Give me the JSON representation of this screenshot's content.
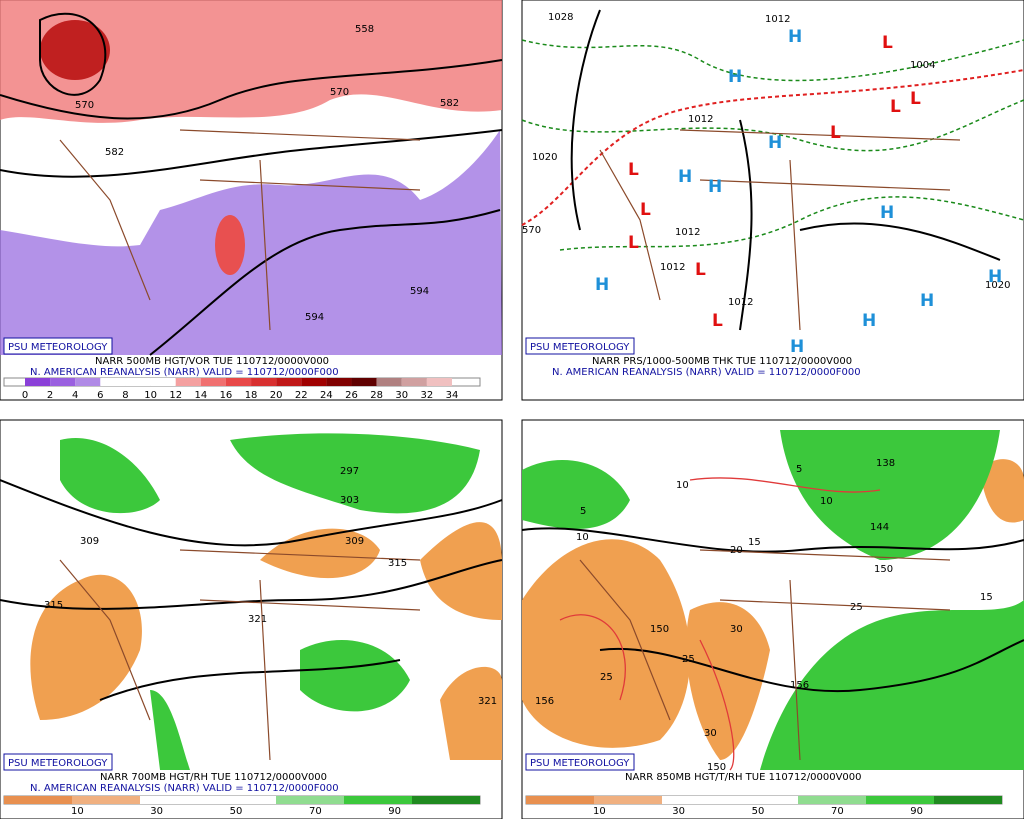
{
  "panels": [
    {
      "badge": "PSU METEOROLOGY",
      "caption_1": "NARR 500MB HGT/VOR TUE 110712/0000V000",
      "caption_2": "N. AMERICAN REANALYSIS (NARR) VALID = 110712/0000F000",
      "colorbar_labels": [
        0,
        2,
        4,
        6,
        8,
        10,
        12,
        14,
        16,
        18,
        20,
        22,
        24,
        26,
        28,
        30,
        32,
        34
      ],
      "contour_labels": [
        "558",
        "570",
        "570",
        "582",
        "582",
        "594",
        "594"
      ]
    },
    {
      "badge": "PSU METEOROLOGY",
      "caption_1": "NARR PRS/1000-500MB THK TUE 110712/0000V000",
      "caption_2": "N. AMERICAN REANALYSIS (NARR) VALID = 110712/0000F000",
      "contour_labels": [
        "1028",
        "1012",
        "1004",
        "1020",
        "570",
        "1012",
        "1012",
        "1012",
        "1012",
        "1020"
      ],
      "highs": [
        "H",
        "H",
        "H",
        "H",
        "H",
        "H",
        "H",
        "H",
        "H",
        "H",
        "H"
      ],
      "lows": [
        "L",
        "L",
        "L",
        "L",
        "L",
        "L",
        "L",
        "L",
        "L"
      ]
    },
    {
      "badge": "PSU METEOROLOGY",
      "caption_1": "NARR 700MB HGT/RH TUE 110712/0000V000",
      "caption_2": "N. AMERICAN REANALYSIS (NARR) VALID = 110712/0000F000",
      "colorbar_labels": [
        10,
        30,
        50,
        70,
        90
      ],
      "contour_labels": [
        "297",
        "303",
        "309",
        "309",
        "315",
        "315",
        "321",
        "321"
      ]
    },
    {
      "badge": "PSU METEOROLOGY",
      "caption_1": "NARR 850MB HGT/T/RH TUE 110712/0000V000",
      "colorbar_labels": [
        10,
        30,
        50,
        70,
        90
      ],
      "contour_labels": [
        "138",
        "144",
        "150",
        "150",
        "156",
        "156",
        "150"
      ],
      "temperature_labels": [
        "5",
        "10",
        "10",
        "10",
        "15",
        "20",
        "25",
        "25",
        "25",
        "30",
        "30",
        "15",
        "5"
      ]
    }
  ]
}
